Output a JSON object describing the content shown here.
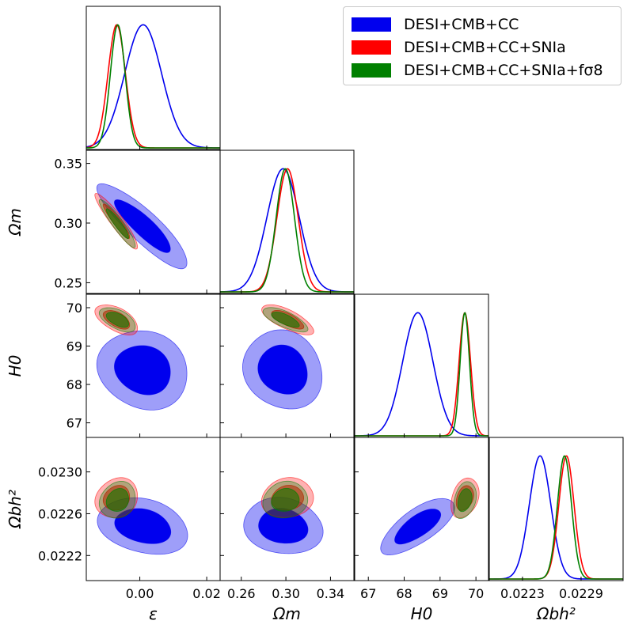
{
  "chart_data": {
    "type": "corner",
    "title": "",
    "parameters": [
      {
        "key": "eps",
        "label": "ε",
        "range": [
          -0.016,
          0.024
        ],
        "ticks": [
          0.0,
          0.02
        ],
        "tick_labels": [
          "0.00",
          "0.02"
        ]
      },
      {
        "key": "om",
        "label": "Ωm",
        "range": [
          0.241,
          0.361
        ],
        "ticks": [
          0.25,
          0.3,
          0.35
        ],
        "tick_labels": [
          "0.25",
          "0.30",
          "0.35"
        ],
        "x_ticks": [
          0.26,
          0.3,
          0.34
        ],
        "x_tick_labels": [
          "0.26",
          "0.30",
          "0.34"
        ]
      },
      {
        "key": "h0",
        "label": "H0",
        "range": [
          66.62,
          70.35
        ],
        "ticks": [
          67,
          68,
          69,
          70
        ],
        "tick_labels": [
          "67",
          "68",
          "69",
          "70"
        ]
      },
      {
        "key": "obh2",
        "label": "Ωbh²",
        "range": [
          0.02196,
          0.02333
        ],
        "ticks": [
          0.0222,
          0.0226,
          0.023
        ],
        "tick_labels": [
          "0.0222",
          "0.0226",
          "0.0230"
        ],
        "x_ticks": [
          0.0223,
          0.0229
        ],
        "x_tick_labels": [
          "0.0223",
          "0.0229"
        ]
      }
    ],
    "axis_labels": {
      "x": [
        "ε",
        "Ωm",
        "H0",
        "Ωbh²"
      ],
      "y": [
        "Ωm",
        "H0",
        "Ωbh²"
      ]
    },
    "series": [
      {
        "name": "DESI+CMB+CC",
        "color": "#0000ee",
        "means": {
          "eps": 0.001,
          "om": 0.2975,
          "h0": 68.38,
          "obh2": 0.02248
        },
        "sigmas": {
          "eps": 0.0055,
          "om": 0.0145,
          "h0": 0.42,
          "obh2": 0.00011
        },
        "corr": {
          "eps|om": -0.88,
          "eps|h0": -0.12,
          "om|h0": -0.12,
          "eps|obh2": -0.25,
          "om|obh2": -0.12,
          "h0|obh2": 0.72
        }
      },
      {
        "name": "DESI+CMB+CC+SNIa",
        "color": "#ff0000",
        "means": {
          "eps": -0.0069,
          "om": 0.3015,
          "h0": 69.69,
          "obh2": 0.02275
        },
        "sigmas": {
          "eps": 0.0026,
          "om": 0.0095,
          "h0": 0.16,
          "obh2": 7.8e-05
        },
        "corr": {
          "eps|om": -0.93,
          "eps|h0": -0.55,
          "om|h0": -0.72,
          "eps|obh2": 0.15,
          "om|obh2": 0.1,
          "h0|obh2": 0.3
        }
      },
      {
        "name": "DESI+CMB+CC+SNIa+fσ8",
        "color": "#008000",
        "means": {
          "eps": -0.0066,
          "om": 0.2995,
          "h0": 69.69,
          "obh2": 0.02273
        },
        "sigmas": {
          "eps": 0.0022,
          "om": 0.0082,
          "h0": 0.13,
          "obh2": 7.2e-05
        },
        "corr": {
          "eps|om": -0.93,
          "eps|h0": -0.55,
          "om|h0": -0.72,
          "eps|obh2": 0.15,
          "om|obh2": 0.1,
          "h0|obh2": 0.3
        }
      }
    ],
    "legend_position": "top-right",
    "legend": [
      "DESI+CMB+CC",
      "DESI+CMB+CC+SNIa",
      "DESI+CMB+CC+SNIa+fσ8"
    ]
  }
}
